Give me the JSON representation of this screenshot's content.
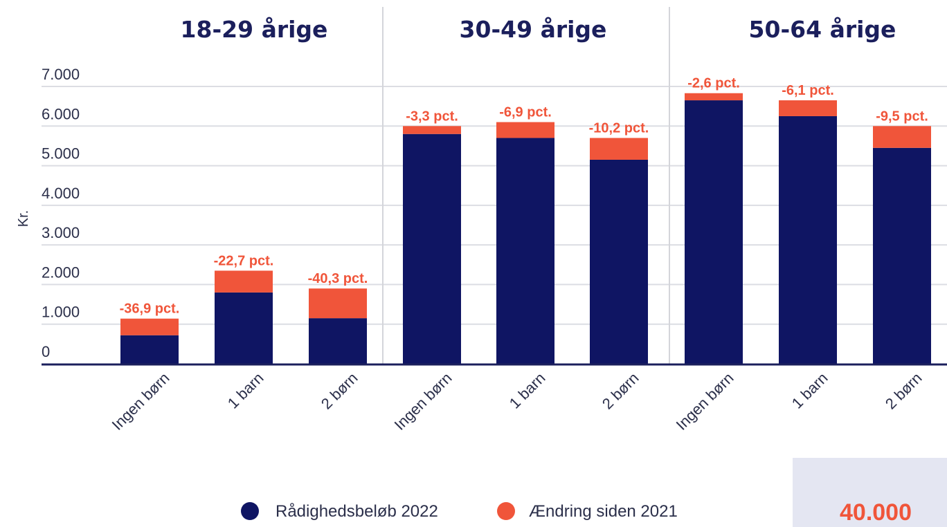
{
  "colors": {
    "base": "#0f1563",
    "change": "#f0553a",
    "title": "#1b1f5c",
    "grid": "#dcdde3",
    "axis": "#1b1f5c",
    "separator": "#d4d5da"
  },
  "chart_data": {
    "type": "bar",
    "stacked": true,
    "ylabel": "Kr.",
    "ylim": [
      0,
      7000
    ],
    "yticks": [
      0,
      1000,
      2000,
      3000,
      4000,
      5000,
      6000,
      7000
    ],
    "ytick_labels": [
      "0",
      "1.000",
      "2.000",
      "3.000",
      "4.000",
      "5.000",
      "6.000",
      "7.000"
    ],
    "grid": true,
    "legend_position": "bottom",
    "legend": [
      "Rådighedsbeløb 2022",
      "Ændring siden 2021"
    ],
    "groups": [
      {
        "title": "18-29 årige",
        "categories": [
          "Ingen børn",
          "1 barn",
          "2 børn"
        ],
        "base": [
          720,
          1800,
          1150
        ],
        "change": [
          420,
          550,
          750
        ],
        "labels": [
          "-36,9 pct.",
          "-22,7 pct.",
          "-40,3 pct."
        ]
      },
      {
        "title": "30-49 årige",
        "categories": [
          "Ingen børn",
          "1 barn",
          "2 børn"
        ],
        "base": [
          5800,
          5700,
          5150
        ],
        "change": [
          200,
          400,
          550
        ],
        "labels": [
          "-3,3 pct.",
          "-6,9 pct.",
          "-10,2 pct."
        ]
      },
      {
        "title": "50-64 årige",
        "categories": [
          "Ingen børn",
          "1 barn",
          "2 børn"
        ],
        "base": [
          6650,
          6250,
          5450
        ],
        "change": [
          180,
          400,
          550
        ],
        "labels": [
          "-2,6 pct.",
          "-6,1 pct.",
          "-9,5 pct."
        ]
      }
    ]
  },
  "side_box": {
    "value": "40.000"
  }
}
